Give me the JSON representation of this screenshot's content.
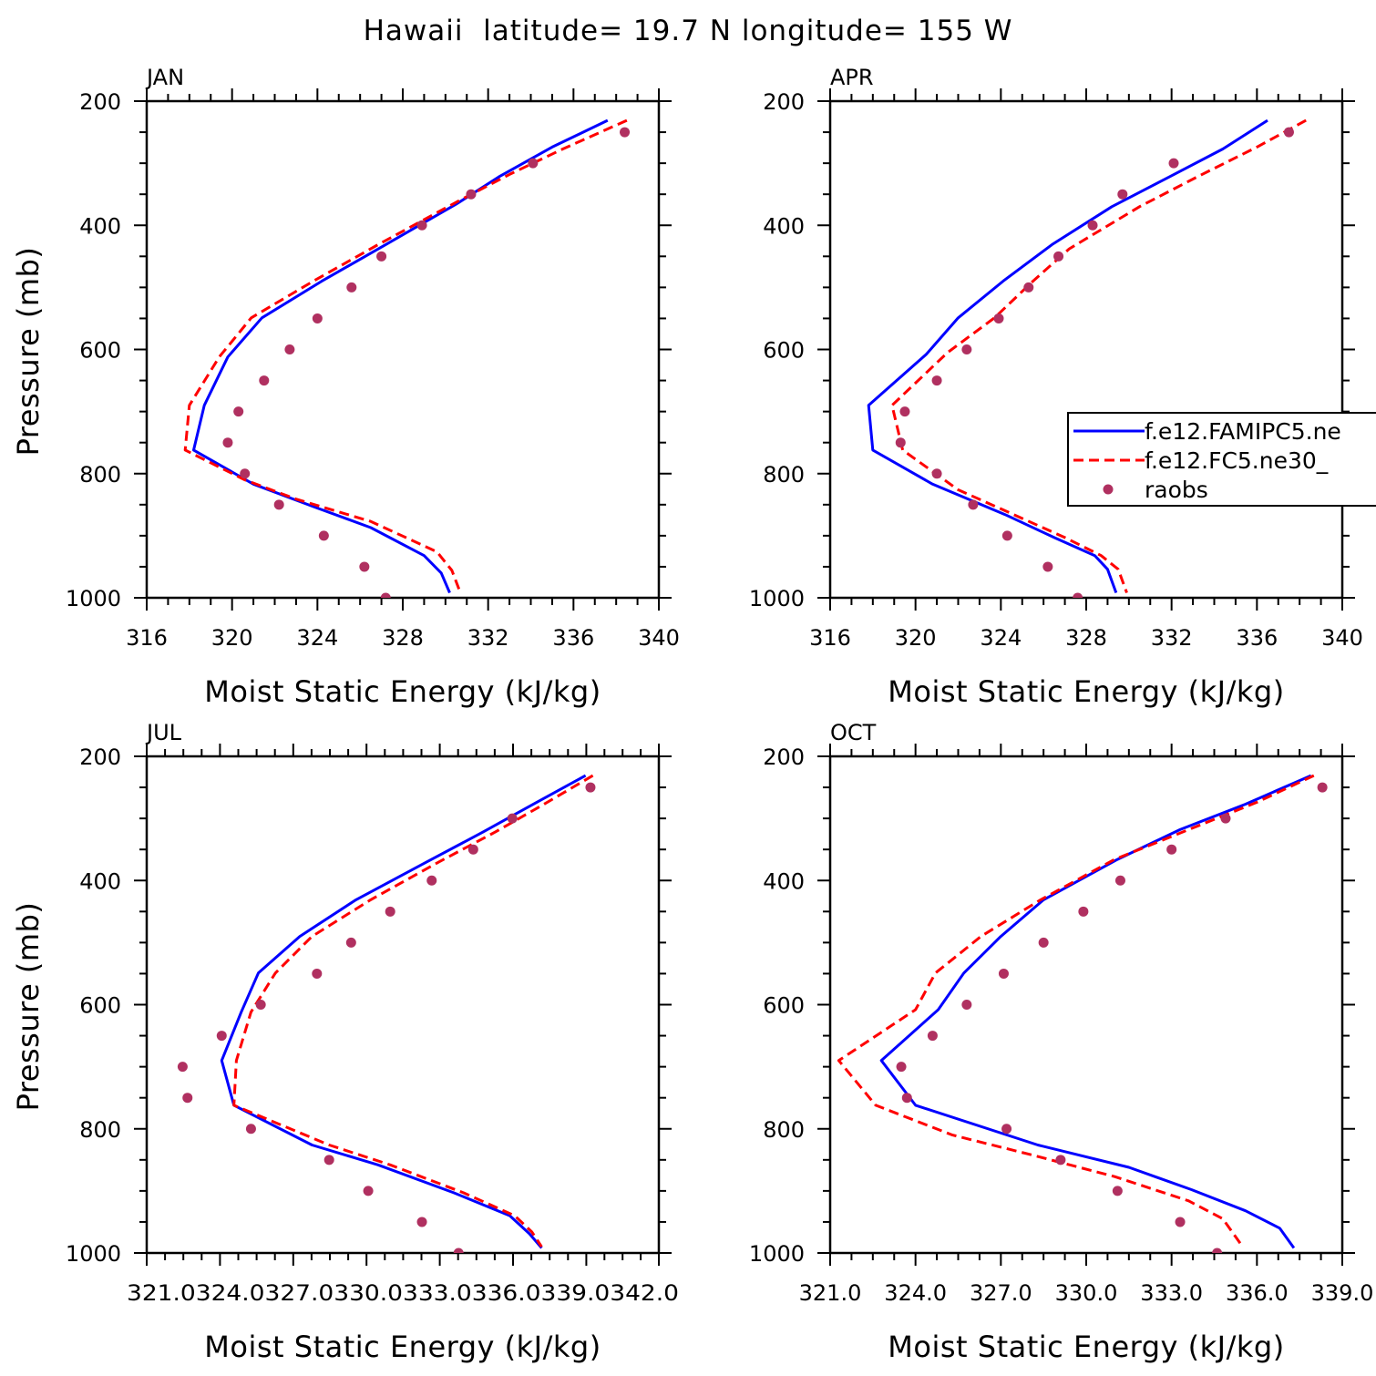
{
  "figure": {
    "title": "Hawaii  latitude= 19.7 N longitude= 155 W"
  },
  "legend": {
    "entries": [
      {
        "label": "f.e12.FAMIPC5.ne",
        "color": "#0000ff",
        "style": "solid"
      },
      {
        "label": "f.e12.FC5.ne30_",
        "color": "#ff0000",
        "style": "dashed"
      },
      {
        "label": "raobs",
        "color": "#b03060",
        "style": "marker"
      }
    ]
  },
  "chart_data": [
    {
      "type": "line",
      "panel": "JAN",
      "xlabel": "Moist Static Energy (kJ/kg)",
      "ylabel": "Pressure (mb)",
      "xlim": [
        316,
        340
      ],
      "ylim": [
        200,
        1000
      ],
      "yinverted": true,
      "xticks": [
        316,
        320,
        324,
        328,
        332,
        336,
        340
      ],
      "xtick_labels": [
        "316",
        "320",
        "324",
        "328",
        "332",
        "336",
        "340"
      ],
      "yticks": [
        200,
        400,
        600,
        800,
        1000
      ],
      "ytick_labels": [
        "200",
        "400",
        "600",
        "800",
        "1000"
      ],
      "series": [
        {
          "name": "f.e12.FAMIPC5.ne",
          "color": "#0000ff",
          "style": "solid",
          "points": [
            [
              337.6,
              231
            ],
            [
              335.0,
              274
            ],
            [
              332.5,
              322
            ],
            [
              330.5,
              366
            ],
            [
              327.2,
              431
            ],
            [
              324.2,
              490
            ],
            [
              321.4,
              549
            ],
            [
              319.8,
              612
            ],
            [
              318.7,
              690
            ],
            [
              318.2,
              762
            ],
            [
              321.0,
              817
            ],
            [
              323.8,
              853
            ],
            [
              326.5,
              887
            ],
            [
              329.0,
              932
            ],
            [
              329.8,
              960
            ],
            [
              330.2,
              992
            ]
          ]
        },
        {
          "name": "f.e12.FC5.ne30_",
          "color": "#ff0000",
          "style": "dashed",
          "points": [
            [
              338.5,
              231
            ],
            [
              335.5,
              277
            ],
            [
              333.0,
              318
            ],
            [
              330.6,
              361
            ],
            [
              326.8,
              432
            ],
            [
              323.8,
              490
            ],
            [
              320.9,
              549
            ],
            [
              319.4,
              612
            ],
            [
              318.0,
              690
            ],
            [
              317.8,
              762
            ],
            [
              320.6,
              810
            ],
            [
              323.0,
              841
            ],
            [
              326.5,
              877
            ],
            [
              329.6,
              926
            ],
            [
              330.3,
              956
            ],
            [
              330.7,
              992
            ]
          ]
        },
        {
          "name": "raobs",
          "color": "#b03060",
          "style": "marker",
          "points": [
            [
              338.4,
              250
            ],
            [
              334.1,
              300
            ],
            [
              331.2,
              350
            ],
            [
              328.9,
              400
            ],
            [
              327.0,
              450
            ],
            [
              325.6,
              500
            ],
            [
              324.0,
              550
            ],
            [
              322.7,
              600
            ],
            [
              321.5,
              650
            ],
            [
              320.3,
              700
            ],
            [
              319.8,
              750
            ],
            [
              320.6,
              800
            ],
            [
              322.2,
              850
            ],
            [
              324.3,
              900
            ],
            [
              326.2,
              950
            ],
            [
              327.2,
              1000
            ]
          ]
        }
      ]
    },
    {
      "type": "line",
      "panel": "APR",
      "xlabel": "Moist Static Energy (kJ/kg)",
      "ylabel": "",
      "xlim": [
        316,
        340
      ],
      "ylim": [
        200,
        1000
      ],
      "yinverted": true,
      "xticks": [
        316,
        320,
        324,
        328,
        332,
        336,
        340
      ],
      "xtick_labels": [
        "316",
        "320",
        "324",
        "328",
        "332",
        "336",
        "340"
      ],
      "yticks": [
        200,
        400,
        600,
        800,
        1000
      ],
      "ytick_labels": [
        "200",
        "400",
        "600",
        "800",
        "1000"
      ],
      "series": [
        {
          "name": "f.e12.FAMIPC5.ne",
          "color": "#0000ff",
          "style": "solid",
          "points": [
            [
              336.5,
              231
            ],
            [
              334.4,
              277
            ],
            [
              331.9,
              322
            ],
            [
              329.2,
              370
            ],
            [
              326.4,
              431
            ],
            [
              324.1,
              490
            ],
            [
              322.0,
              549
            ],
            [
              320.5,
              608
            ],
            [
              317.8,
              690
            ],
            [
              318.0,
              762
            ],
            [
              320.8,
              817
            ],
            [
              324.2,
              866
            ],
            [
              326.5,
              903
            ],
            [
              328.4,
              932
            ],
            [
              329.0,
              954
            ],
            [
              329.4,
              992
            ]
          ]
        },
        {
          "name": "f.e12.FC5.ne30_",
          "color": "#ff0000",
          "style": "dashed",
          "points": [
            [
              338.3,
              231
            ],
            [
              336.0,
              274
            ],
            [
              333.2,
              322
            ],
            [
              330.5,
              370
            ],
            [
              327.2,
              438
            ],
            [
              325.5,
              490
            ],
            [
              323.7,
              549
            ],
            [
              321.5,
              605
            ],
            [
              318.9,
              690
            ],
            [
              319.4,
              762
            ],
            [
              322.0,
              826
            ],
            [
              324.6,
              866
            ],
            [
              327.0,
              903
            ],
            [
              328.7,
              932
            ],
            [
              329.5,
              954
            ],
            [
              329.9,
              992
            ]
          ]
        },
        {
          "name": "raobs",
          "color": "#b03060",
          "style": "marker",
          "points": [
            [
              337.5,
              250
            ],
            [
              332.1,
              300
            ],
            [
              329.7,
              350
            ],
            [
              328.3,
              400
            ],
            [
              326.7,
              450
            ],
            [
              325.3,
              500
            ],
            [
              323.9,
              550
            ],
            [
              322.4,
              600
            ],
            [
              321.0,
              650
            ],
            [
              319.5,
              700
            ],
            [
              319.3,
              750
            ],
            [
              321.0,
              800
            ],
            [
              322.7,
              850
            ],
            [
              324.3,
              900
            ],
            [
              326.2,
              950
            ],
            [
              327.6,
              1000
            ]
          ]
        }
      ]
    },
    {
      "type": "line",
      "panel": "JUL",
      "xlabel": "Moist Static Energy (kJ/kg)",
      "ylabel": "Pressure (mb)",
      "xlim": [
        321.03,
        342.0
      ],
      "ylim": [
        200,
        1000
      ],
      "yinverted": true,
      "xticks": [
        321.03,
        324.03,
        327.03,
        330.03,
        333.03,
        336.03,
        339.03,
        342.0
      ],
      "xtick_labels": [
        "321.0",
        "324.0",
        "327.0",
        "330.0",
        "333.0",
        "336.0",
        "339.0",
        "342.0"
      ],
      "xtick_labels_joined": "321.0324.0327.0330.0333.0336.0339.0342.0",
      "yticks": [
        200,
        400,
        600,
        800,
        1000
      ],
      "ytick_labels": [
        "200",
        "400",
        "600",
        "800",
        "1000"
      ],
      "series": [
        {
          "name": "f.e12.FAMIPC5.ne",
          "color": "#0000ff",
          "style": "solid",
          "points": [
            [
              339.0,
              231
            ],
            [
              337.0,
              274
            ],
            [
              334.8,
              322
            ],
            [
              332.5,
              370
            ],
            [
              329.6,
              431
            ],
            [
              327.3,
              490
            ],
            [
              325.6,
              549
            ],
            [
              324.9,
              612
            ],
            [
              324.1,
              690
            ],
            [
              324.6,
              762
            ],
            [
              327.8,
              826
            ],
            [
              330.5,
              858
            ],
            [
              333.6,
              903
            ],
            [
              335.9,
              940
            ],
            [
              336.7,
              969
            ],
            [
              337.2,
              992
            ]
          ]
        },
        {
          "name": "f.e12.FC5.ne30_",
          "color": "#ff0000",
          "style": "dashed",
          "points": [
            [
              339.3,
              231
            ],
            [
              337.3,
              277
            ],
            [
              335.3,
              322
            ],
            [
              333.0,
              370
            ],
            [
              330.2,
              431
            ],
            [
              327.8,
              490
            ],
            [
              326.3,
              549
            ],
            [
              325.3,
              612
            ],
            [
              324.7,
              690
            ],
            [
              324.6,
              762
            ],
            [
              328.5,
              826
            ],
            [
              331.0,
              858
            ],
            [
              334.0,
              903
            ],
            [
              336.1,
              940
            ],
            [
              336.8,
              966
            ],
            [
              337.2,
              990
            ]
          ]
        },
        {
          "name": "raobs",
          "color": "#b03060",
          "style": "marker",
          "points": [
            [
              339.2,
              250
            ],
            [
              336.0,
              300
            ],
            [
              334.4,
              350
            ],
            [
              332.7,
              400
            ],
            [
              331.0,
              450
            ],
            [
              329.4,
              500
            ],
            [
              328.0,
              550
            ],
            [
              325.7,
              600
            ],
            [
              324.1,
              650
            ],
            [
              322.5,
              700
            ],
            [
              322.7,
              750
            ],
            [
              325.3,
              800
            ],
            [
              328.5,
              850
            ],
            [
              330.1,
              900
            ],
            [
              332.3,
              950
            ],
            [
              333.8,
              1000
            ]
          ]
        }
      ]
    },
    {
      "type": "line",
      "panel": "OCT",
      "xlabel": "Moist Static Energy (kJ/kg)",
      "ylabel": "",
      "xlim": [
        321.0,
        339.0
      ],
      "ylim": [
        200,
        1000
      ],
      "yinverted": true,
      "xticks": [
        321.0,
        324.0,
        327.0,
        330.0,
        333.0,
        336.0,
        339.0
      ],
      "xtick_labels": [
        "321.0",
        "324.0",
        "327.0",
        "330.0",
        "333.0",
        "336.0",
        "339.0"
      ],
      "yticks": [
        200,
        400,
        600,
        800,
        1000
      ],
      "ytick_labels": [
        "200",
        "400",
        "600",
        "800",
        "1000"
      ],
      "series": [
        {
          "name": "f.e12.FAMIPC5.ne",
          "color": "#0000ff",
          "style": "solid",
          "points": [
            [
              337.9,
              231
            ],
            [
              335.6,
              277
            ],
            [
              333.3,
              318
            ],
            [
              331.1,
              366
            ],
            [
              328.5,
              431
            ],
            [
              327.0,
              490
            ],
            [
              325.7,
              549
            ],
            [
              324.8,
              608
            ],
            [
              322.8,
              690
            ],
            [
              324.0,
              762
            ],
            [
              328.3,
              826
            ],
            [
              331.5,
              862
            ],
            [
              333.7,
              898
            ],
            [
              335.6,
              932
            ],
            [
              336.8,
              960
            ],
            [
              337.3,
              992
            ]
          ]
        },
        {
          "name": "f.e12.FC5.ne30_",
          "color": "#ff0000",
          "style": "dashed",
          "points": [
            [
              338.0,
              231
            ],
            [
              336.0,
              274
            ],
            [
              333.6,
              318
            ],
            [
              331.0,
              366
            ],
            [
              328.4,
              431
            ],
            [
              326.3,
              490
            ],
            [
              324.7,
              549
            ],
            [
              324.0,
              608
            ],
            [
              321.3,
              690
            ],
            [
              322.6,
              762
            ],
            [
              325.3,
              810
            ],
            [
              328.0,
              841
            ],
            [
              331.0,
              877
            ],
            [
              333.6,
              916
            ],
            [
              334.8,
              945
            ],
            [
              335.5,
              990
            ]
          ]
        },
        {
          "name": "raobs",
          "color": "#b03060",
          "style": "marker",
          "points": [
            [
              338.3,
              250
            ],
            [
              334.9,
              300
            ],
            [
              333.0,
              350
            ],
            [
              331.2,
              400
            ],
            [
              329.9,
              450
            ],
            [
              328.5,
              500
            ],
            [
              327.1,
              550
            ],
            [
              325.8,
              600
            ],
            [
              324.6,
              650
            ],
            [
              323.5,
              700
            ],
            [
              323.7,
              750
            ],
            [
              327.2,
              800
            ],
            [
              329.1,
              850
            ],
            [
              331.1,
              900
            ],
            [
              333.3,
              950
            ],
            [
              334.6,
              1000
            ]
          ]
        }
      ]
    }
  ]
}
